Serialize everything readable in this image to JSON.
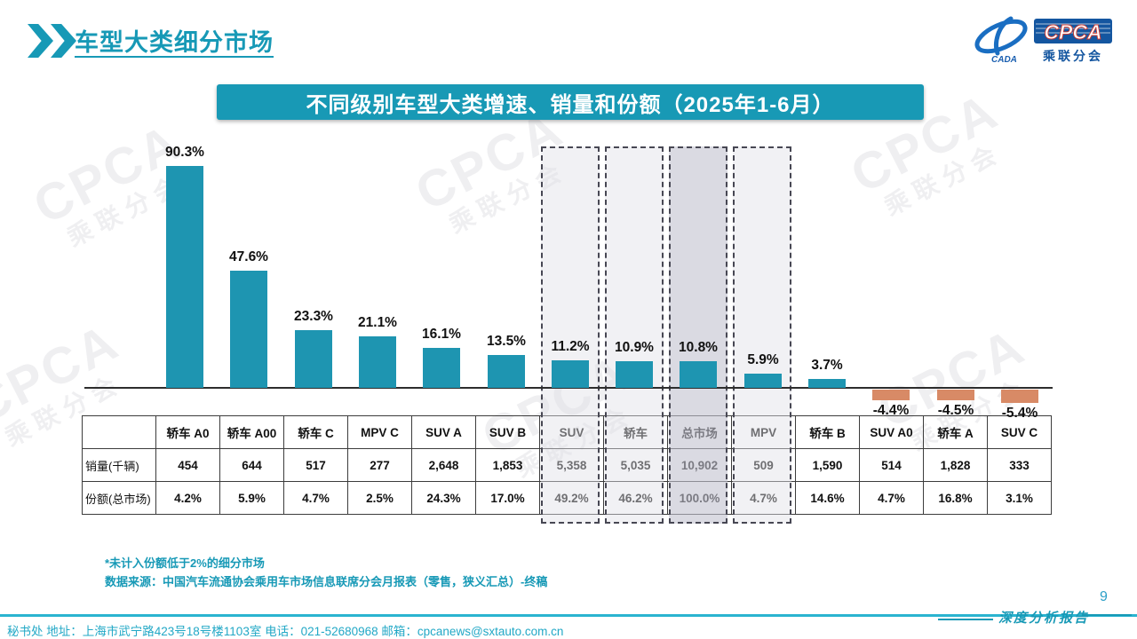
{
  "page": {
    "title": "车型大类细分市场",
    "number": "9",
    "report_label": "深度分析报告"
  },
  "logo": {
    "cada": "CADA",
    "cpca": "CPCA",
    "sub": "乘联分会"
  },
  "banner": {
    "title": "不同级别车型大类增速、销量和份额（2025年1-6月）"
  },
  "chart_data": {
    "type": "bar",
    "title": "不同级别车型大类增速、销量和份额（2025年1-6月）",
    "unit": "%",
    "categories": [
      "轿车 A0",
      "轿车 A00",
      "轿车 C",
      "MPV C",
      "SUV A",
      "SUV B",
      "SUV",
      "轿车",
      "总市场",
      "MPV",
      "轿车 B",
      "SUV A0",
      "轿车 A",
      "SUV C"
    ],
    "values": [
      90.3,
      47.6,
      23.3,
      21.1,
      16.1,
      13.5,
      11.2,
      10.9,
      10.8,
      5.9,
      3.7,
      -4.4,
      -4.5,
      -5.4
    ],
    "value_labels": [
      "90.3%",
      "47.6%",
      "23.3%",
      "21.1%",
      "16.1%",
      "13.5%",
      "11.2%",
      "10.9%",
      "10.8%",
      "5.9%",
      "3.7%",
      "-4.4%",
      "-4.5%",
      "-5.4%"
    ],
    "ylim": [
      -10,
      95
    ],
    "grid": false,
    "legend": "none",
    "bar_color_positive": "#1e95b1",
    "bar_color_negative": "#d88a66",
    "highlight_columns": [
      "SUV",
      "轿车",
      "总市场",
      "MPV"
    ],
    "emphasis_column": "总市场"
  },
  "table": {
    "columns": [
      "轿车 A0",
      "轿车 A00",
      "轿车 C",
      "MPV C",
      "SUV A",
      "SUV B",
      "SUV",
      "轿车",
      "总市场",
      "MPV",
      "轿车 B",
      "SUV A0",
      "轿车 A",
      "SUV C"
    ],
    "rows": [
      {
        "label": "销量(千辆)",
        "values": [
          "454",
          "644",
          "517",
          "277",
          "2,648",
          "1,853",
          "5,358",
          "5,035",
          "10,902",
          "509",
          "1,590",
          "514",
          "1,828",
          "333"
        ]
      },
      {
        "label": "份额(总市场)",
        "values": [
          "4.2%",
          "5.9%",
          "4.7%",
          "2.5%",
          "24.3%",
          "17.0%",
          "49.2%",
          "46.2%",
          "100.0%",
          "4.7%",
          "14.6%",
          "4.7%",
          "16.8%",
          "3.1%"
        ]
      }
    ]
  },
  "notes": {
    "line1": "*未计入份额低于2%的细分市场",
    "line2": "数据来源：中国汽车流通协会乘用车市场信息联席分会月报表（零售，狭义汇总）-终稿"
  },
  "footer": {
    "text": "秘书处  地址：上海市武宁路423号18号楼1103室  电话：021-52680968   邮箱：cpcanews@sxtauto.com.cn"
  },
  "watermark": {
    "en": "CPCA",
    "cn": "乘联分会"
  }
}
